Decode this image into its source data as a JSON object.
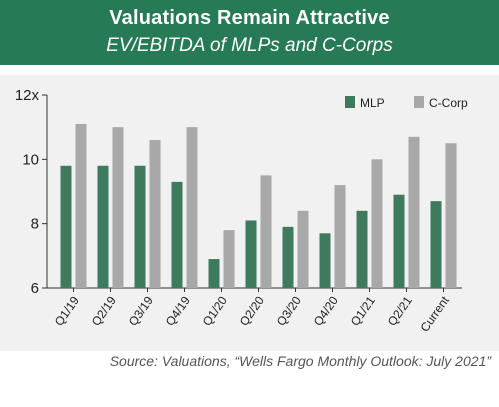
{
  "header": {
    "title": "Valuations Remain Attractive",
    "subtitle": "EV/EBITDA of MLPs and C-Corps"
  },
  "footer": {
    "source": "Source: Valuations, “Wells Fargo Monthly Outlook: July 2021”"
  },
  "colors": {
    "banner": "#267a55",
    "panel": "#f1f1f1",
    "mlp": "#3d7a5e",
    "ccorp": "#a8a8a8"
  },
  "chart_data": {
    "type": "bar",
    "title": "",
    "xlabel": "",
    "ylabel": "",
    "categories": [
      "Q1/19",
      "Q2/19",
      "Q3/19",
      "Q4/19",
      "Q1/20",
      "Q2/20",
      "Q3/20",
      "Q4/20",
      "Q1/21",
      "Q2/21",
      "Current"
    ],
    "series": [
      {
        "name": "MLP",
        "values": [
          9.8,
          9.8,
          9.8,
          9.3,
          6.9,
          8.1,
          7.9,
          7.7,
          8.4,
          8.9,
          8.7
        ]
      },
      {
        "name": "C-Corp",
        "values": [
          11.1,
          11.0,
          10.6,
          11.0,
          7.8,
          9.5,
          8.4,
          9.2,
          10.0,
          10.7,
          10.5
        ]
      }
    ],
    "ylim": [
      6,
      12
    ],
    "yticks": [
      6,
      8,
      10,
      12
    ],
    "ytick_labels": [
      "6",
      "8",
      "10",
      "12x"
    ],
    "grid": false,
    "legend_position": "top-right"
  }
}
